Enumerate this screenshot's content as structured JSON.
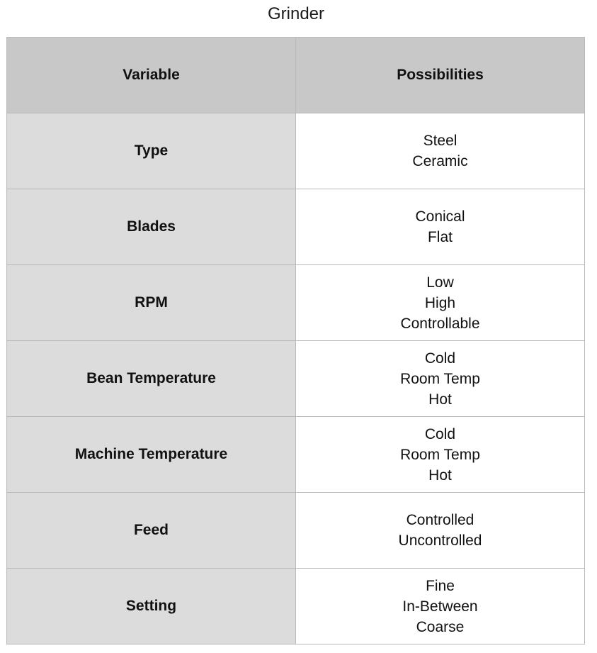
{
  "title": "Grinder",
  "table": {
    "headers": [
      "Variable",
      "Possibilities"
    ],
    "rows": [
      {
        "variable": "Type",
        "options": [
          "Steel",
          "Ceramic"
        ]
      },
      {
        "variable": "Blades",
        "options": [
          "Conical",
          "Flat"
        ]
      },
      {
        "variable": "RPM",
        "options": [
          "Low",
          "High",
          "Controllable"
        ]
      },
      {
        "variable": "Bean Temperature",
        "options": [
          "Cold",
          "Room Temp",
          "Hot"
        ]
      },
      {
        "variable": "Machine Temperature",
        "options": [
          "Cold",
          "Room Temp",
          "Hot"
        ]
      },
      {
        "variable": "Feed",
        "options": [
          "Controlled",
          "Uncontrolled"
        ]
      },
      {
        "variable": "Setting",
        "options": [
          "Fine",
          "In-Between",
          "Coarse"
        ]
      }
    ]
  }
}
